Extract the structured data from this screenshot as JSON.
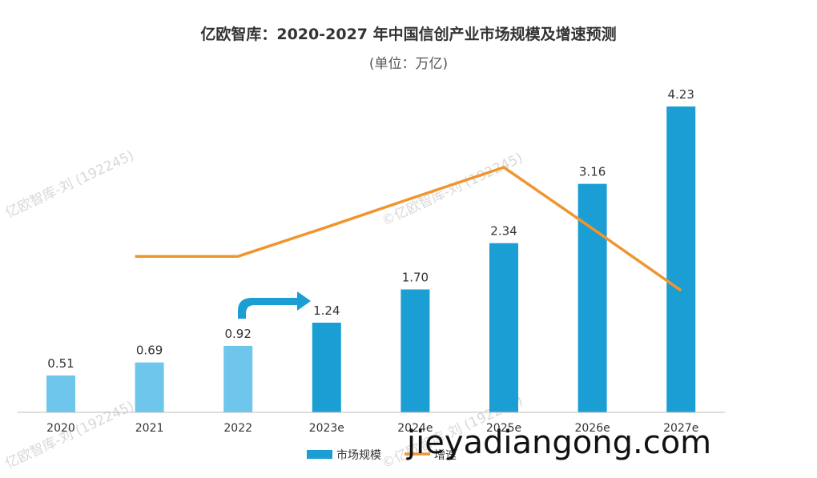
{
  "chart_data": {
    "type": "bar",
    "title": "亿欧智库：2020-2027 年中国信创产业市场规模及增速预测",
    "subtitle": "(单位：万亿)",
    "categories": [
      "2020",
      "2021",
      "2022",
      "2023e",
      "2024e",
      "2025e",
      "2026e",
      "2027e"
    ],
    "series": [
      {
        "name": "市场规模",
        "kind": "bar",
        "values": [
          0.51,
          0.69,
          0.92,
          1.24,
          1.7,
          2.34,
          3.16,
          4.23
        ],
        "labels": [
          "0.51",
          "0.69",
          "0.92",
          "1.24",
          "1.70",
          "2.34",
          "3.16",
          "4.23"
        ],
        "colors": [
          "#6ec6ec",
          "#6ec6ec",
          "#6ec6ec",
          "#1a9ed4",
          "#1a9ed4",
          "#1a9ed4",
          "#1a9ed4",
          "#1a9ed4"
        ]
      },
      {
        "name": "增速",
        "kind": "line",
        "values": [
          null,
          0.352,
          0.352,
          0.418,
          0.486,
          0.553,
          0.415,
          0.275
        ],
        "color": "#f0952e"
      }
    ],
    "ylim": [
      0,
      4.5
    ],
    "line_ylim": [
      0,
      0.75
    ],
    "legend_position": "bottom-center",
    "grid": false
  },
  "watermarks": [
    "亿欧智库-刘 (192245)",
    "©亿欧智库-刘 (192245)",
    "亿欧智库-刘 (192245)",
    "©亿欧智库-刘 (192245)"
  ],
  "site_text": "jieyadiangong.com",
  "arrow_color": "#1a9ed4"
}
